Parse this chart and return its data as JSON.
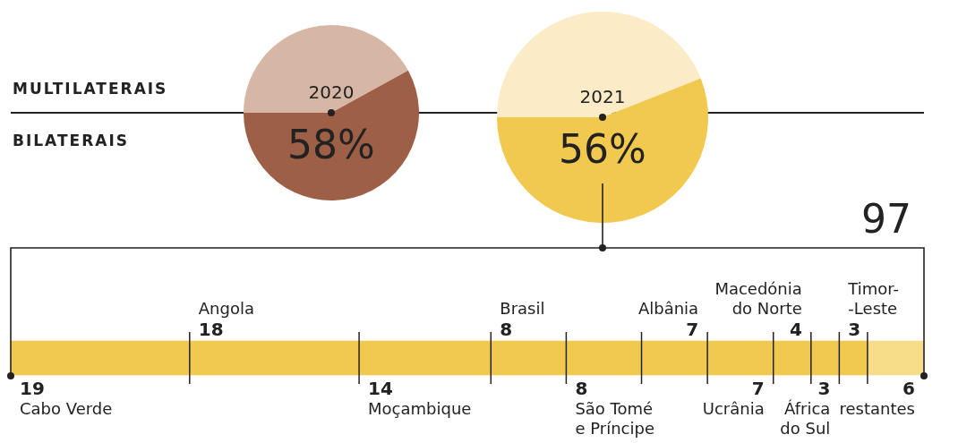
{
  "chart_data": [
    {
      "type": "pie",
      "title": "2020",
      "annotations": [
        "MULTILATERAIS",
        "BILATERAIS"
      ],
      "categories": [
        null,
        null
      ],
      "values": [
        42,
        58
      ],
      "colors": [
        "#d6b6a5",
        "#9d5f45"
      ],
      "value_labels": [
        null,
        "58%"
      ]
    },
    {
      "type": "pie",
      "title": "2021",
      "categories": [
        null,
        null
      ],
      "values": [
        44,
        56
      ],
      "colors": [
        "#fbebc7",
        "#f2c94f"
      ],
      "value_labels": [
        null,
        "56%"
      ]
    },
    {
      "type": "bar",
      "orientation": "horizontal",
      "stacked": true,
      "categories": [
        null
      ],
      "data_labels": true,
      "totals": [
        "97"
      ],
      "series": [
        {
          "name": "Cabo Verde",
          "color": "#f2c94f",
          "values": [
            19
          ]
        },
        {
          "name": "Angola",
          "color": "#f2c94f",
          "values": [
            18
          ]
        },
        {
          "name": "Moçambique",
          "color": "#f2c94f",
          "values": [
            14
          ]
        },
        {
          "name": "Brasil",
          "color": "#f2c94f",
          "values": [
            8
          ]
        },
        {
          "name": "São Tomé\ne Príncipe",
          "color": "#f2c94f",
          "values": [
            8
          ]
        },
        {
          "name": "Albânia",
          "color": "#f2c94f",
          "values": [
            7
          ]
        },
        {
          "name": "Ucrânia",
          "color": "#f2c94f",
          "values": [
            7
          ]
        },
        {
          "name": "Macedónia\ndo Norte",
          "color": "#f2c94f",
          "values": [
            4
          ]
        },
        {
          "name": "África\ndo Sul",
          "color": "#f2c94f",
          "values": [
            3
          ]
        },
        {
          "name": "Timor-\n-Leste",
          "color": "#f2c94f",
          "values": [
            3
          ]
        },
        {
          "name": "restantes",
          "color": "#f7dc8a",
          "values": [
            6
          ]
        }
      ]
    }
  ]
}
